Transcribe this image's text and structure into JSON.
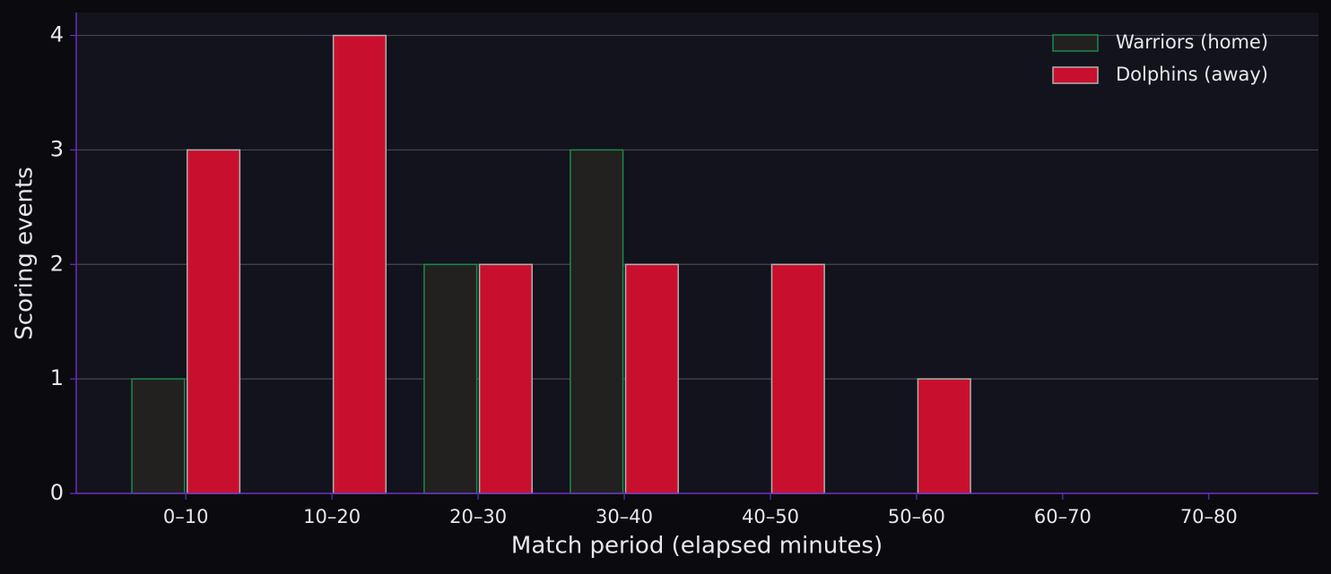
{
  "chart_data": {
    "type": "bar",
    "x_label": "Match period (elapsed minutes)",
    "y_label": "Scoring events",
    "categories": [
      "0–10",
      "10–20",
      "20–30",
      "30–40",
      "40–50",
      "50–60",
      "60–70",
      "70–80"
    ],
    "series": [
      {
        "name": "Warriors (home)",
        "color": "#232020",
        "edge_color": "#1a8a4a",
        "values": [
          1,
          0,
          2,
          3,
          0,
          0,
          0,
          0
        ]
      },
      {
        "name": "Dolphins (away)",
        "color": "#c8102e",
        "edge_color": "#b0b0b0",
        "values": [
          3,
          4,
          2,
          2,
          2,
          1,
          0,
          0
        ]
      }
    ],
    "ylim": [
      0,
      4.2
    ],
    "yticks": [
      0,
      1,
      2,
      3,
      4
    ],
    "grid": true,
    "legend": "upper right"
  }
}
